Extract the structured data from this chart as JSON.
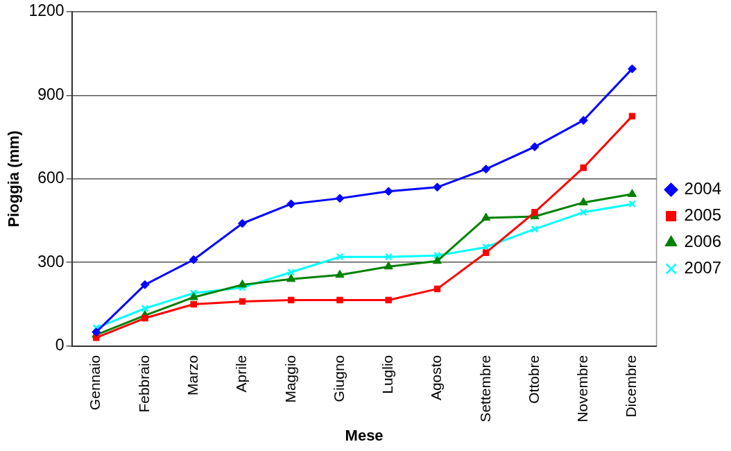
{
  "chart_data": {
    "type": "line",
    "xlabel": "Mese",
    "ylabel": "Pioggia (mm)",
    "categories": [
      "Gennaio",
      "Febbraio",
      "Marzo",
      "Aprile",
      "Maggio",
      "Giugno",
      "Luglio",
      "Agosto",
      "Settembre",
      "Ottobre",
      "Novembre",
      "Dicembre"
    ],
    "series": [
      {
        "name": "2004",
        "color": "#0000ff",
        "marker": "diamond",
        "values": [
          50,
          220,
          310,
          440,
          510,
          530,
          555,
          570,
          635,
          715,
          810,
          995
        ]
      },
      {
        "name": "2005",
        "color": "#ff0000",
        "marker": "square",
        "values": [
          30,
          100,
          150,
          160,
          165,
          165,
          165,
          205,
          335,
          480,
          640,
          825
        ]
      },
      {
        "name": "2006",
        "color": "#008000",
        "marker": "triangle",
        "values": [
          40,
          110,
          175,
          220,
          240,
          255,
          285,
          305,
          460,
          465,
          515,
          545
        ]
      },
      {
        "name": "2007",
        "color": "#00ffff",
        "marker": "cross",
        "values": [
          65,
          135,
          190,
          210,
          265,
          320,
          320,
          325,
          355,
          420,
          480,
          510
        ]
      }
    ],
    "ylim": [
      0,
      1200
    ],
    "yticks": [
      0,
      300,
      600,
      900,
      1200
    ],
    "grid": "y",
    "legend": "right",
    "line_style": "solid"
  }
}
